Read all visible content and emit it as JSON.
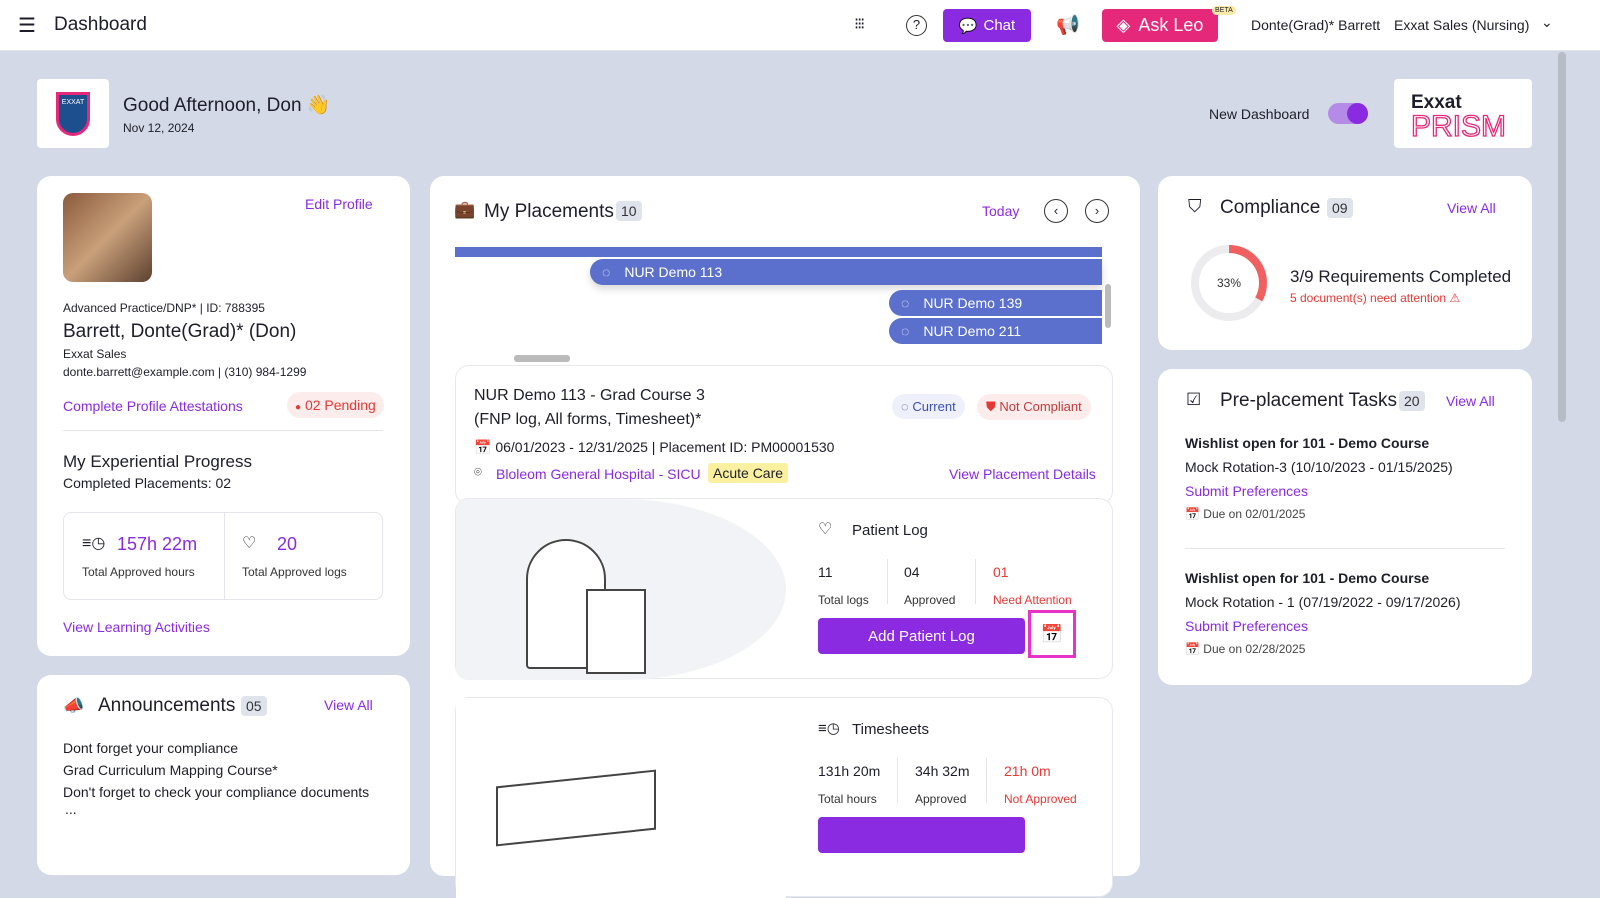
{
  "header": {
    "title": "Dashboard",
    "chat": "Chat",
    "ask_leo": "Ask Leo",
    "beta": "BETA",
    "user": "Donte(Grad)* Barrett",
    "org": "Exxat Sales (Nursing)"
  },
  "greeting": {
    "text": "Good Afternoon, Don",
    "emoji": "👋",
    "date": "Nov 12, 2024",
    "toggle_label": "New Dashboard",
    "toggle_on": true,
    "brand_top": "Exxat",
    "brand_bottom": "PRISM",
    "logo_text": "EXXAT"
  },
  "profile": {
    "edit": "Edit Profile",
    "program": "Advanced Practice/DNP*",
    "id": "| ID: 788395",
    "name": "Barrett, Donte(Grad)* (Don)",
    "org": "Exxat Sales",
    "contact": "donte.barrett@example.com | (310) 984-1299",
    "attest": "Complete Profile Attestations",
    "pending": "02 Pending",
    "progress_title": "My Experiential Progress",
    "completed": "Completed Placements: 02",
    "hours": "157h 22m",
    "hours_label": "Total Approved hours",
    "logs": "20",
    "logs_label": "Total Approved logs",
    "learning": "View Learning Activities"
  },
  "announcements": {
    "title": "Announcements",
    "count": "05",
    "view_all": "View All",
    "item_title": "Dont forget your compliance",
    "item_course": "Grad Curriculum Mapping Course*",
    "item_body": "Don't forget to check your compliance documents",
    "more": "..."
  },
  "placements": {
    "title": "My Placements",
    "count": "10",
    "today": "Today",
    "bars": [
      "NUR Demo 113",
      "NUR Demo 139",
      "NUR Demo 211"
    ],
    "detail": {
      "title1": "NUR Demo 113 - Grad Course 3",
      "title2": "(FNP log, All forms, Timesheet)*",
      "dates": "06/01/2023 - 12/31/2025 | Placement ID: PM00001530",
      "site": "Bloleom General Hospital - SICU",
      "tag": "Acute Care",
      "current": "Current",
      "compliance": "Not Compliant",
      "view": "View Placement Details"
    },
    "patient_log": {
      "title": "Patient Log",
      "total": "11",
      "total_label": "Total logs",
      "approved": "04",
      "approved_label": "Approved",
      "attention": "01",
      "attention_label": "Need Attention",
      "button": "Add Patient Log"
    },
    "timesheets": {
      "title": "Timesheets",
      "total": "131h 20m",
      "total_label": "Total hours",
      "approved": "34h 32m",
      "approved_label": "Approved",
      "not_approved": "21h 0m",
      "not_approved_label": "Not Approved"
    }
  },
  "compliance": {
    "title": "Compliance",
    "count": "09",
    "view_all": "View All",
    "percent": 33,
    "percent_label": "33%",
    "summary": "3/9 Requirements Completed",
    "attention": "5 document(s) need attention"
  },
  "tasks": {
    "title": "Pre-placement Tasks",
    "count": "20",
    "view_all": "View All",
    "items": [
      {
        "title": "Wishlist open for 101 - Demo Course",
        "rotation": "Mock Rotation-3 (10/10/2023 - 01/15/2025)",
        "action": "Submit Preferences",
        "due": "Due on 02/01/2025"
      },
      {
        "title": "Wishlist open for 101 - Demo Course",
        "rotation": "Mock Rotation - 1 (07/19/2022 - 09/17/2026)",
        "action": "Submit Preferences",
        "due": "Due on 02/28/2025"
      }
    ]
  },
  "colors": {
    "accent": "#8a2be2",
    "ask_leo": "#e6287a",
    "bar": "#5b70cc",
    "danger": "#e53935",
    "bg": "#d3d9e6"
  }
}
